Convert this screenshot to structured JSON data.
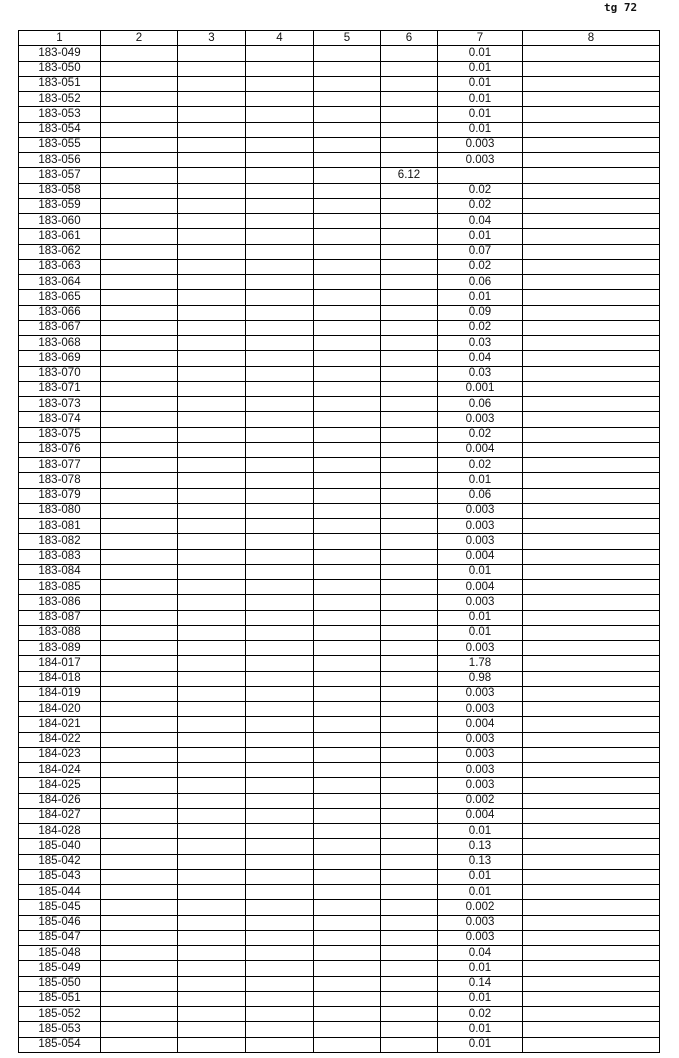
{
  "page_number": "tg 72",
  "headers": [
    "1",
    "2",
    "3",
    "4",
    "5",
    "6",
    "7",
    "8"
  ],
  "rows": [
    [
      "183-049",
      "",
      "",
      "",
      "",
      "",
      "0.01",
      ""
    ],
    [
      "183-050",
      "",
      "",
      "",
      "",
      "",
      "0.01",
      ""
    ],
    [
      "183-051",
      "",
      "",
      "",
      "",
      "",
      "0.01",
      ""
    ],
    [
      "183-052",
      "",
      "",
      "",
      "",
      "",
      "0.01",
      ""
    ],
    [
      "183-053",
      "",
      "",
      "",
      "",
      "",
      "0.01",
      ""
    ],
    [
      "183-054",
      "",
      "",
      "",
      "",
      "",
      "0.01",
      ""
    ],
    [
      "183-055",
      "",
      "",
      "",
      "",
      "",
      "0.003",
      ""
    ],
    [
      "183-056",
      "",
      "",
      "",
      "",
      "",
      "0.003",
      ""
    ],
    [
      "183-057",
      "",
      "",
      "",
      "",
      "6.12",
      "",
      ""
    ],
    [
      "183-058",
      "",
      "",
      "",
      "",
      "",
      "0.02",
      ""
    ],
    [
      "183-059",
      "",
      "",
      "",
      "",
      "",
      "0.02",
      ""
    ],
    [
      "183-060",
      "",
      "",
      "",
      "",
      "",
      "0.04",
      ""
    ],
    [
      "183-061",
      "",
      "",
      "",
      "",
      "",
      "0.01",
      ""
    ],
    [
      "183-062",
      "",
      "",
      "",
      "",
      "",
      "0.07",
      ""
    ],
    [
      "183-063",
      "",
      "",
      "",
      "",
      "",
      "0.02",
      ""
    ],
    [
      "183-064",
      "",
      "",
      "",
      "",
      "",
      "0.06",
      ""
    ],
    [
      "183-065",
      "",
      "",
      "",
      "",
      "",
      "0.01",
      ""
    ],
    [
      "183-066",
      "",
      "",
      "",
      "",
      "",
      "0.09",
      ""
    ],
    [
      "183-067",
      "",
      "",
      "",
      "",
      "",
      "0.02",
      ""
    ],
    [
      "183-068",
      "",
      "",
      "",
      "",
      "",
      "0.03",
      ""
    ],
    [
      "183-069",
      "",
      "",
      "",
      "",
      "",
      "0.04",
      ""
    ],
    [
      "183-070",
      "",
      "",
      "",
      "",
      "",
      "0.03",
      ""
    ],
    [
      "183-071",
      "",
      "",
      "",
      "",
      "",
      "0.001",
      ""
    ],
    [
      "183-073",
      "",
      "",
      "",
      "",
      "",
      "0.06",
      ""
    ],
    [
      "183-074",
      "",
      "",
      "",
      "",
      "",
      "0.003",
      ""
    ],
    [
      "183-075",
      "",
      "",
      "",
      "",
      "",
      "0.02",
      ""
    ],
    [
      "183-076",
      "",
      "",
      "",
      "",
      "",
      "0.004",
      ""
    ],
    [
      "183-077",
      "",
      "",
      "",
      "",
      "",
      "0.02",
      ""
    ],
    [
      "183-078",
      "",
      "",
      "",
      "",
      "",
      "0.01",
      ""
    ],
    [
      "183-079",
      "",
      "",
      "",
      "",
      "",
      "0.06",
      ""
    ],
    [
      "183-080",
      "",
      "",
      "",
      "",
      "",
      "0.003",
      ""
    ],
    [
      "183-081",
      "",
      "",
      "",
      "",
      "",
      "0.003",
      ""
    ],
    [
      "183-082",
      "",
      "",
      "",
      "",
      "",
      "0.003",
      ""
    ],
    [
      "183-083",
      "",
      "",
      "",
      "",
      "",
      "0.004",
      ""
    ],
    [
      "183-084",
      "",
      "",
      "",
      "",
      "",
      "0.01",
      ""
    ],
    [
      "183-085",
      "",
      "",
      "",
      "",
      "",
      "0.004",
      ""
    ],
    [
      "183-086",
      "",
      "",
      "",
      "",
      "",
      "0.003",
      ""
    ],
    [
      "183-087",
      "",
      "",
      "",
      "",
      "",
      "0.01",
      ""
    ],
    [
      "183-088",
      "",
      "",
      "",
      "",
      "",
      "0.01",
      ""
    ],
    [
      "183-089",
      "",
      "",
      "",
      "",
      "",
      "0.003",
      ""
    ],
    [
      "184-017",
      "",
      "",
      "",
      "",
      "",
      "1.78",
      ""
    ],
    [
      "184-018",
      "",
      "",
      "",
      "",
      "",
      "0.98",
      ""
    ],
    [
      "184-019",
      "",
      "",
      "",
      "",
      "",
      "0.003",
      ""
    ],
    [
      "184-020",
      "",
      "",
      "",
      "",
      "",
      "0.003",
      ""
    ],
    [
      "184-021",
      "",
      "",
      "",
      "",
      "",
      "0.004",
      ""
    ],
    [
      "184-022",
      "",
      "",
      "",
      "",
      "",
      "0.003",
      ""
    ],
    [
      "184-023",
      "",
      "",
      "",
      "",
      "",
      "0.003",
      ""
    ],
    [
      "184-024",
      "",
      "",
      "",
      "",
      "",
      "0.003",
      ""
    ],
    [
      "184-025",
      "",
      "",
      "",
      "",
      "",
      "0.003",
      ""
    ],
    [
      "184-026",
      "",
      "",
      "",
      "",
      "",
      "0.002",
      ""
    ],
    [
      "184-027",
      "",
      "",
      "",
      "",
      "",
      "0.004",
      ""
    ],
    [
      "184-028",
      "",
      "",
      "",
      "",
      "",
      "0.01",
      ""
    ],
    [
      "185-040",
      "",
      "",
      "",
      "",
      "",
      "0.13",
      ""
    ],
    [
      "185-042",
      "",
      "",
      "",
      "",
      "",
      "0.13",
      ""
    ],
    [
      "185-043",
      "",
      "",
      "",
      "",
      "",
      "0.01",
      ""
    ],
    [
      "185-044",
      "",
      "",
      "",
      "",
      "",
      "0.01",
      ""
    ],
    [
      "185-045",
      "",
      "",
      "",
      "",
      "",
      "0.002",
      ""
    ],
    [
      "185-046",
      "",
      "",
      "",
      "",
      "",
      "0.003",
      ""
    ],
    [
      "185-047",
      "",
      "",
      "",
      "",
      "",
      "0.003",
      ""
    ],
    [
      "185-048",
      "",
      "",
      "",
      "",
      "",
      "0.04",
      ""
    ],
    [
      "185-049",
      "",
      "",
      "",
      "",
      "",
      "0.01",
      ""
    ],
    [
      "185-050",
      "",
      "",
      "",
      "",
      "",
      "0.14",
      ""
    ],
    [
      "185-051",
      "",
      "",
      "",
      "",
      "",
      "0.01",
      ""
    ],
    [
      "185-052",
      "",
      "",
      "",
      "",
      "",
      "0.02",
      ""
    ],
    [
      "185-053",
      "",
      "",
      "",
      "",
      "",
      "0.01",
      ""
    ],
    [
      "185-054",
      "",
      "",
      "",
      "",
      "",
      "0.01",
      ""
    ]
  ]
}
